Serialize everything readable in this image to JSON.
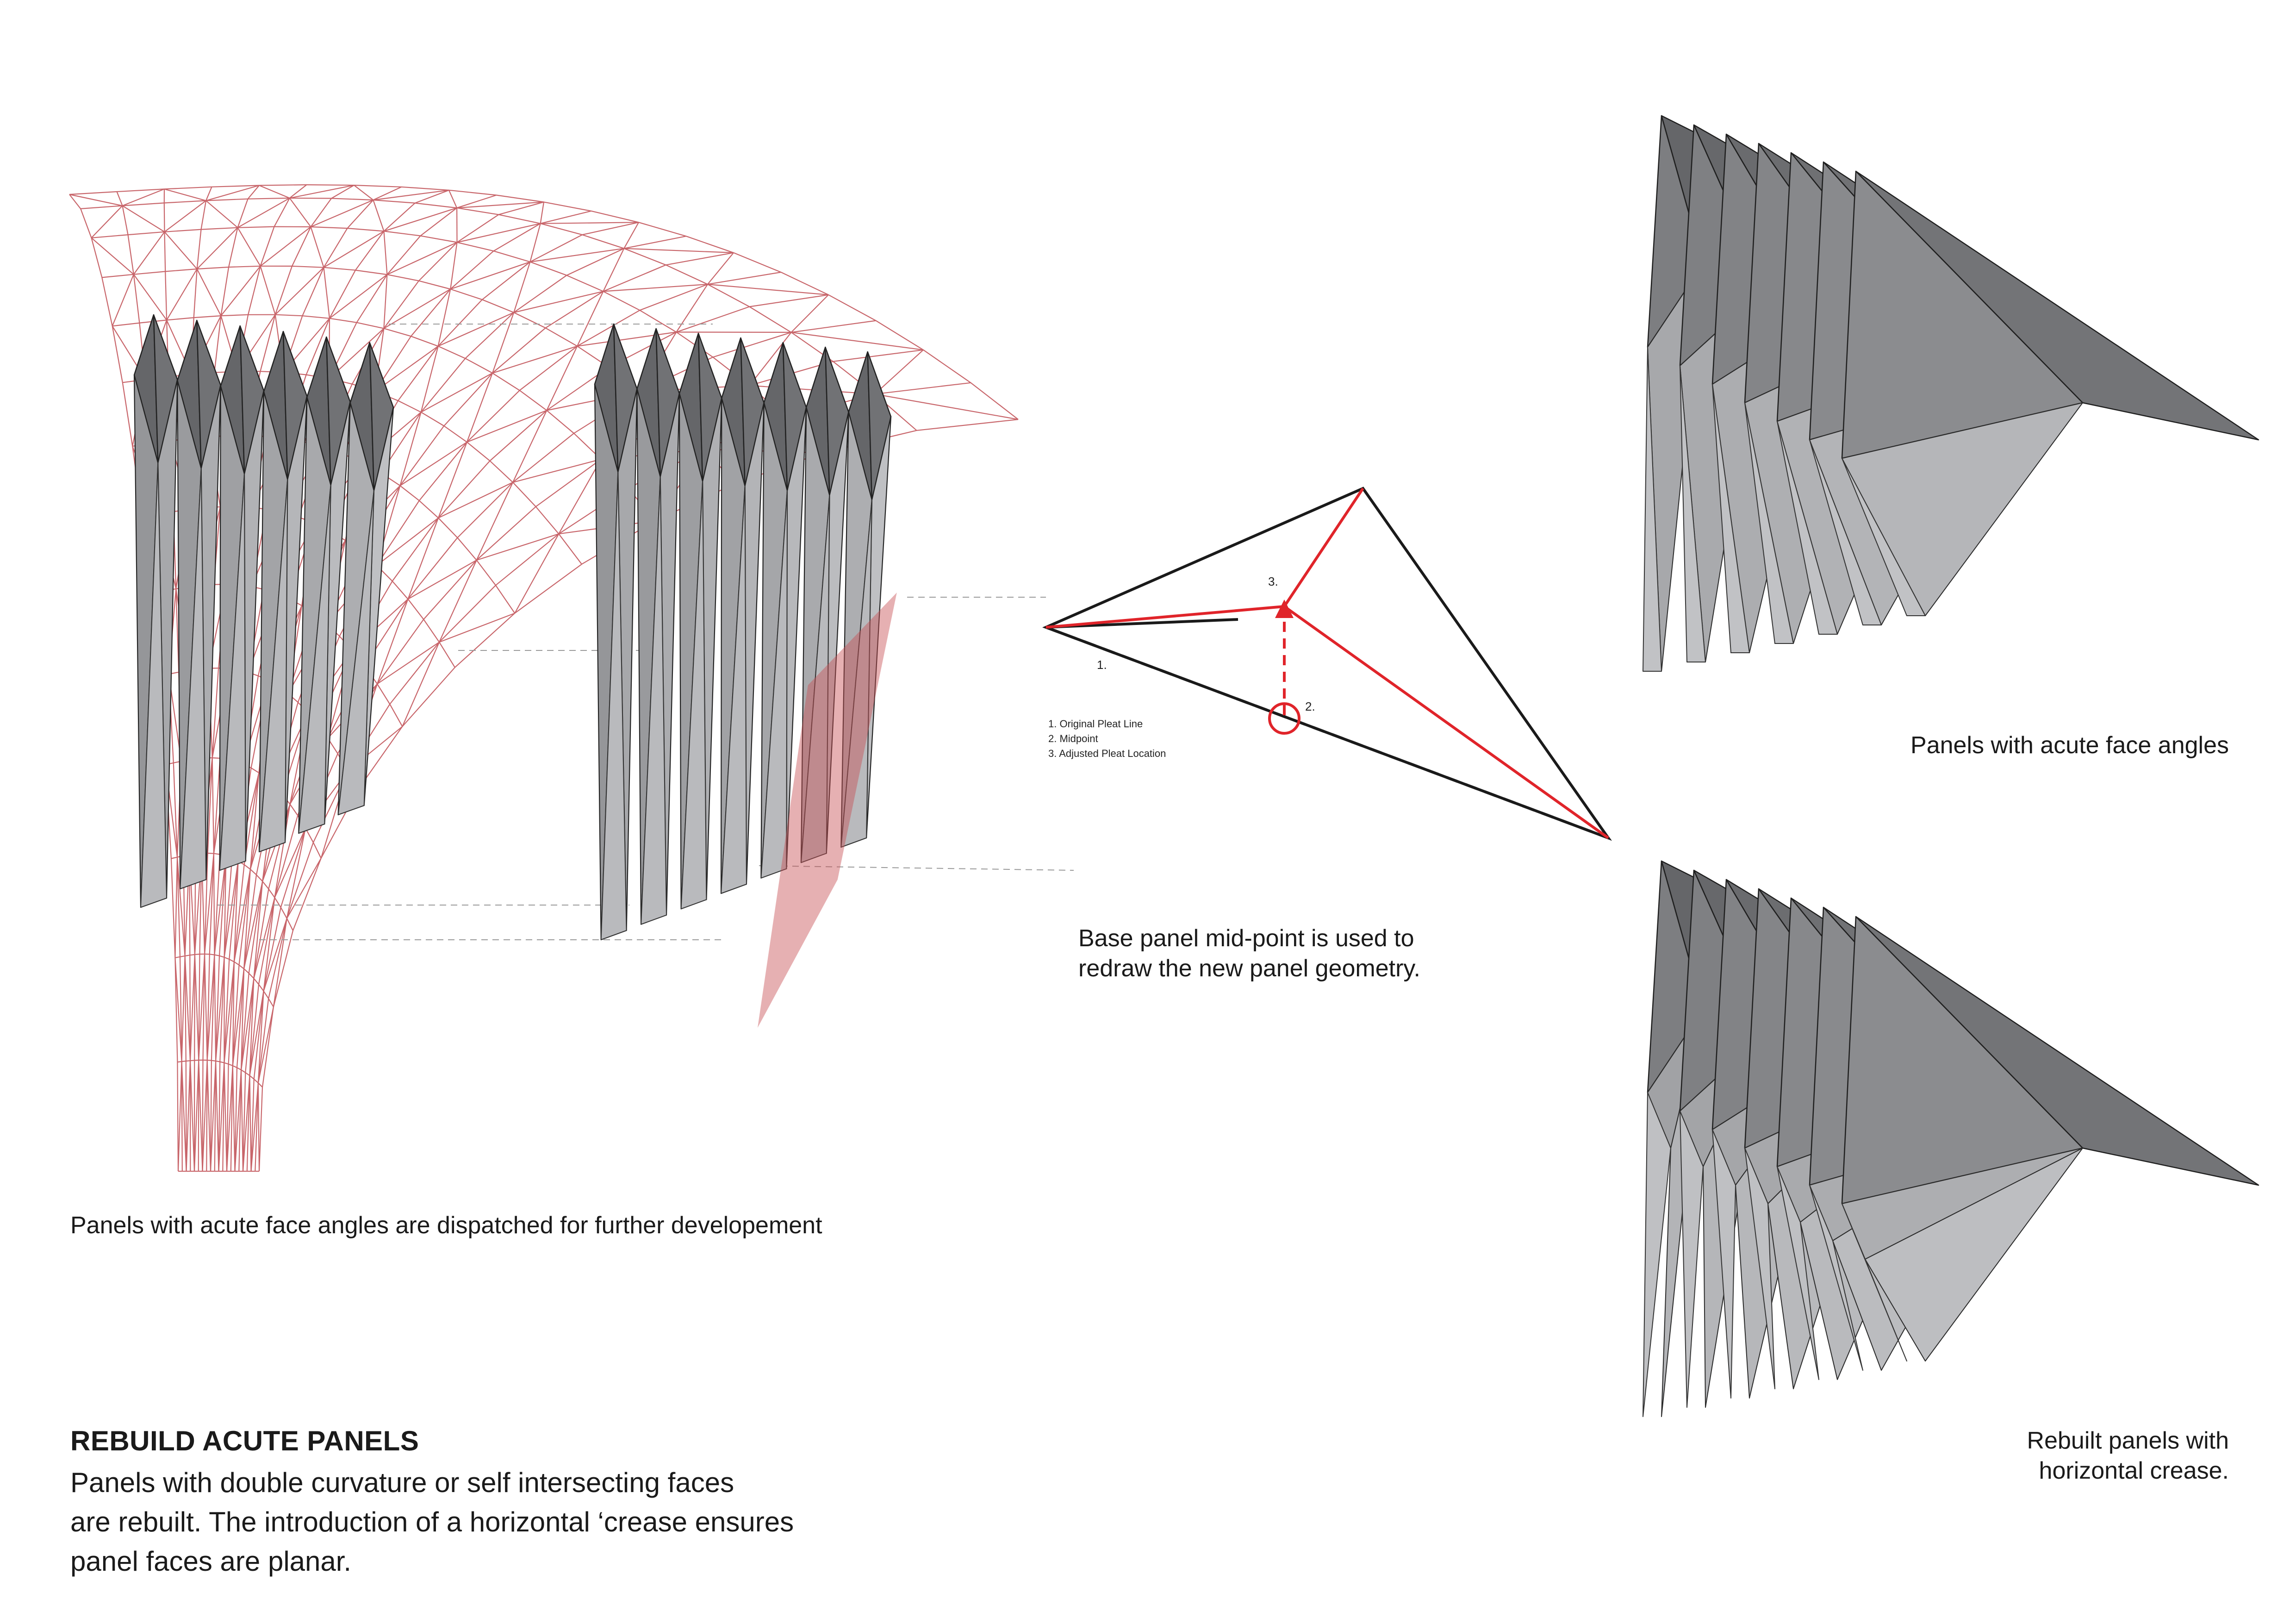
{
  "captions": {
    "left": "Panels with acute face angles are dispatched for further developement",
    "center_line1": "Base panel mid-point is used to",
    "center_line2": "redraw the new panel geometry.",
    "right_top": "Panels with acute face angles",
    "right_bottom_line1": "Rebuilt panels with",
    "right_bottom_line2": "horizontal crease."
  },
  "section": {
    "title": "REBUILD ACUTE PANELS",
    "body_line1": "Panels with double curvature or self intersecting faces",
    "body_line2": "are rebuilt. The introduction of a horizontal ‘crease ensures",
    "body_line3": "panel faces are planar."
  },
  "diagram_legend": {
    "item1": "1. Original Pleat Line",
    "item2": "2. Midpoint",
    "item3": "3. Adjusted Pleat Location",
    "label1": "1.",
    "label2": "2.",
    "label3": "3."
  },
  "colors": {
    "accent_red": "#e0242a",
    "mesh_red": "#c8656a",
    "panel_dark": "#5f6064",
    "panel_mid": "#8e9095",
    "panel_light": "#c9cacd",
    "line_black": "#1a1a1a"
  }
}
